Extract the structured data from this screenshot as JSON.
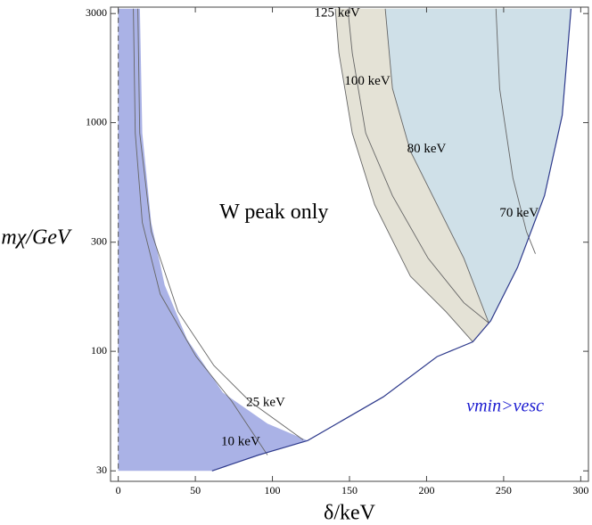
{
  "chart_data": {
    "type": "region",
    "xlabel": "δ/keV",
    "ylabel": "mχ/GeV",
    "xlim": [
      -5,
      305
    ],
    "ylim": [
      27,
      3200
    ],
    "log_y": true,
    "xticks": [
      0,
      50,
      100,
      150,
      200,
      250,
      300
    ],
    "yticks": [
      30,
      100,
      300,
      1000,
      3000
    ],
    "regions": [
      {
        "color": "#e4e2d6",
        "x": [
          140.8,
          143.1,
          151.8,
          166.3,
          189.5,
          212.6,
          230,
          241.6,
          259,
          276.5,
          288,
          293.7
        ],
        "y": [
          3150,
          2020,
          900,
          438,
          213,
          149,
          110,
          136,
          233,
          479,
          1076,
          3150
        ]
      },
      {
        "color": "#cfe0e8",
        "x": [
          173.2,
          177.9,
          189.5,
          206.8,
          224.2,
          240.4,
          259,
          276.5,
          288,
          293.7
        ],
        "y": [
          3150,
          1410,
          750,
          438,
          255,
          133,
          233,
          479,
          1076,
          3150
        ]
      },
      {
        "color": "#aab2e6",
        "x": [
          0,
          14,
          15.6,
          21.4,
          30.1,
          44.6,
          67.8,
          96.8,
          122.8,
          91,
          60.8,
          0
        ],
        "y": [
          3150,
          3150,
          900,
          366,
          195,
          113,
          66,
          48.3,
          40.7,
          35.2,
          30,
          30
        ]
      }
    ],
    "boundary": {
      "color": "#2e3a8c",
      "x": [
        60.8,
        91,
        122.8,
        172,
        206.8,
        230,
        241.6,
        259,
        276.5,
        288,
        293.7
      ],
      "y": [
        30,
        35.2,
        40.7,
        63.2,
        94.8,
        110,
        136,
        233,
        479,
        1076,
        3150
      ]
    },
    "contours": [
      {
        "label": "125 keV",
        "label_x": 142,
        "label_y": 3000,
        "x": [
          140.8,
          143.1,
          151.8,
          166.3,
          189.5,
          212.6,
          230
        ],
        "y": [
          3150,
          2020,
          900,
          438,
          213,
          149,
          110
        ]
      },
      {
        "label": "100 keV",
        "label_x": 161.6,
        "label_y": 1513,
        "x": [
          148.9,
          151.8,
          160.5,
          177.9,
          201,
          224.2,
          240.4
        ],
        "y": [
          3150,
          2020,
          900,
          479,
          255,
          163,
          133
        ]
      },
      {
        "label": "80 keV",
        "label_x": 200,
        "label_y": 764,
        "x": [
          173.2,
          177.9,
          189.5,
          206.8,
          224.2,
          240.4
        ],
        "y": [
          3150,
          1410,
          750,
          438,
          255,
          133
        ]
      },
      {
        "label": "70 keV",
        "label_x": 260,
        "label_y": 400,
        "x": [
          245,
          247.4,
          256,
          264.8,
          270.6
        ],
        "y": [
          3150,
          1410,
          573,
          334,
          267
        ]
      },
      {
        "label": "25 keV",
        "label_x": 95.6,
        "label_y": 59.4,
        "x": [
          12.7,
          13.9,
          21.4,
          38.8,
          62,
          85.2,
          120
        ],
        "y": [
          3150,
          900,
          334,
          149,
          86.7,
          60.5,
          41
        ]
      },
      {
        "label": "10 keV",
        "label_x": 79.4,
        "label_y": 40,
        "x": [
          9.8,
          11,
          15.6,
          27.2,
          50.4,
          73.6,
          96.8
        ],
        "y": [
          3150,
          900,
          366,
          178,
          95,
          60.5,
          35.2
        ]
      }
    ],
    "annotations": [
      {
        "text": "W peak only",
        "x": 101,
        "y": 400,
        "color": "#000000"
      },
      {
        "text": "vmin>vesc",
        "x": 251,
        "y": 57,
        "color": "#1a1ad0"
      }
    ]
  }
}
